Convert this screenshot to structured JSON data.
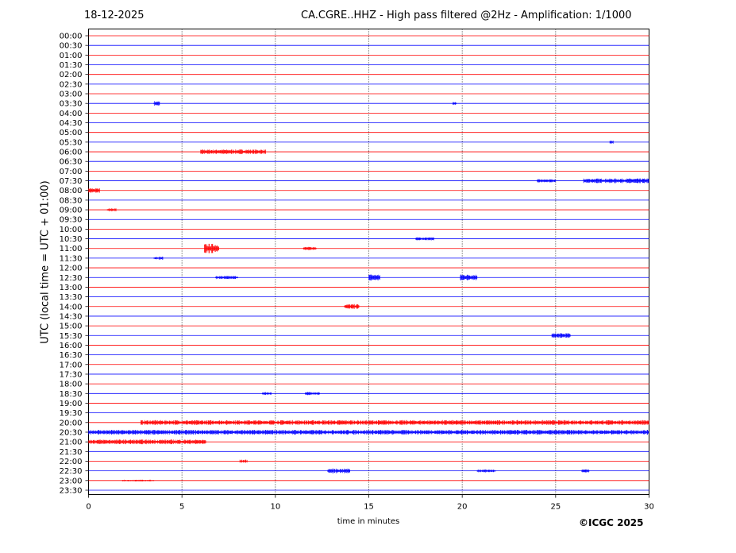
{
  "header": {
    "date": "18-12-2025",
    "title": "CA.CGRE..HHZ - High pass filtered @2Hz - Amplification: 1/1000"
  },
  "footer": {
    "copyright": "©ICGC 2025"
  },
  "chart_data": {
    "type": "line",
    "title": "CA.CGRE..HHZ - High pass filtered @2Hz - Amplification: 1/1000",
    "xlabel": "time in minutes",
    "ylabel": "UTC (local time = UTC + 01:00)",
    "xlim": [
      0,
      30
    ],
    "x_ticks": [
      0,
      5,
      10,
      15,
      20,
      25,
      30
    ],
    "grid": "vertical dotted lines at 5-minute intervals",
    "rows": [
      "00:00",
      "00:30",
      "01:00",
      "01:30",
      "02:00",
      "02:30",
      "03:00",
      "03:30",
      "04:00",
      "04:30",
      "05:00",
      "05:30",
      "06:00",
      "06:30",
      "07:00",
      "07:30",
      "08:00",
      "08:30",
      "09:00",
      "09:30",
      "10:00",
      "10:30",
      "11:00",
      "11:30",
      "12:00",
      "12:30",
      "13:00",
      "13:30",
      "14:00",
      "14:30",
      "15:00",
      "15:30",
      "16:00",
      "16:30",
      "17:00",
      "17:30",
      "18:00",
      "18:30",
      "19:00",
      "19:30",
      "20:00",
      "20:30",
      "21:00",
      "21:30",
      "22:00",
      "22:30",
      "23:00",
      "23:30"
    ],
    "row_colors": [
      "#ff0000",
      "#0000ff"
    ],
    "events": [
      {
        "row": "03:30",
        "start": 3.5,
        "end": 3.8,
        "amp": 3
      },
      {
        "row": "03:30",
        "start": 19.5,
        "end": 19.7,
        "amp": 2
      },
      {
        "row": "05:30",
        "start": 27.9,
        "end": 28.1,
        "amp": 2
      },
      {
        "row": "06:00",
        "start": 6.0,
        "end": 9.5,
        "amp": 3
      },
      {
        "row": "07:30",
        "start": 24.0,
        "end": 25.0,
        "amp": 2
      },
      {
        "row": "07:30",
        "start": 26.5,
        "end": 30.0,
        "amp": 3
      },
      {
        "row": "08:00",
        "start": 0.0,
        "end": 0.6,
        "amp": 3
      },
      {
        "row": "09:00",
        "start": 1.0,
        "end": 1.5,
        "amp": 2
      },
      {
        "row": "10:30",
        "start": 17.5,
        "end": 18.5,
        "amp": 2
      },
      {
        "row": "11:00",
        "start": 6.2,
        "end": 7.0,
        "amp": 6
      },
      {
        "row": "11:00",
        "start": 11.5,
        "end": 12.2,
        "amp": 2
      },
      {
        "row": "11:30",
        "start": 3.5,
        "end": 4.0,
        "amp": 2
      },
      {
        "row": "12:30",
        "start": 6.8,
        "end": 8.0,
        "amp": 2
      },
      {
        "row": "12:30",
        "start": 15.0,
        "end": 15.6,
        "amp": 4
      },
      {
        "row": "12:30",
        "start": 19.9,
        "end": 20.8,
        "amp": 4
      },
      {
        "row": "14:00",
        "start": 13.7,
        "end": 14.5,
        "amp": 3
      },
      {
        "row": "15:30",
        "start": 24.8,
        "end": 25.8,
        "amp": 3
      },
      {
        "row": "18:30",
        "start": 9.3,
        "end": 9.8,
        "amp": 2
      },
      {
        "row": "18:30",
        "start": 11.6,
        "end": 12.4,
        "amp": 2
      },
      {
        "row": "20:00",
        "start": 2.8,
        "end": 30.0,
        "amp": 3
      },
      {
        "row": "20:30",
        "start": 0.0,
        "end": 30.0,
        "amp": 3
      },
      {
        "row": "21:00",
        "start": 0.0,
        "end": 6.3,
        "amp": 3
      },
      {
        "row": "22:00",
        "start": 8.1,
        "end": 8.5,
        "amp": 2
      },
      {
        "row": "22:30",
        "start": 12.8,
        "end": 14.0,
        "amp": 3
      },
      {
        "row": "22:30",
        "start": 20.8,
        "end": 21.8,
        "amp": 2
      },
      {
        "row": "22:30",
        "start": 26.4,
        "end": 26.8,
        "amp": 2
      },
      {
        "row": "23:00",
        "start": 1.8,
        "end": 3.5,
        "amp": 1
      }
    ]
  }
}
